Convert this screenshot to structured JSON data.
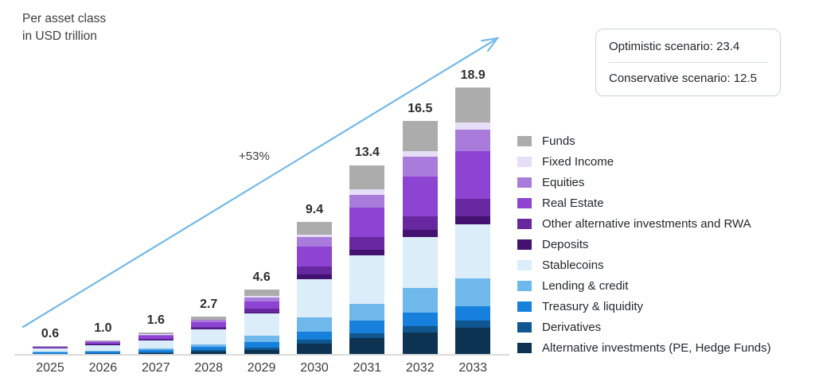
{
  "header": {
    "title_line1": "Per asset class",
    "title_line2": "in USD trillion"
  },
  "scenario_box": {
    "optimistic_label": "Optimistic scenario: 23.4",
    "conservative_label": "Conservative scenario: 12.5"
  },
  "annotations": {
    "growth_label": "+53%"
  },
  "chart_data": {
    "type": "bar",
    "stacked": true,
    "unit": "USD trillion",
    "title": "Per asset class in USD trillion",
    "legend_position": "right",
    "arrow_color": "#74b9e7",
    "axis_line_color": "#dadada",
    "categories": [
      "2025",
      "2026",
      "2027",
      "2028",
      "2029",
      "2030",
      "2031",
      "2032",
      "2033"
    ],
    "totals": [
      "0.6",
      "1.0",
      "1.6",
      "2.7",
      "4.6",
      "9.4",
      "13.4",
      "16.5",
      "18.9"
    ],
    "growth_annotation": "+53%",
    "scenarios": {
      "optimistic": 23.4,
      "conservative": 12.5
    },
    "stacking_note": "series listed top-to-bottom as shown in legend; bars stack in reverse (last series at bottom)",
    "series": [
      {
        "name": "Funds",
        "color": "#acacac",
        "values": [
          0.02,
          0.04,
          0.14,
          0.2,
          0.45,
          0.9,
          1.7,
          2.1,
          2.5
        ]
      },
      {
        "name": "Fixed Income",
        "color": "#e5def6",
        "values": [
          0.01,
          0.02,
          0.03,
          0.05,
          0.1,
          0.2,
          0.4,
          0.4,
          0.5
        ]
      },
      {
        "name": "Equities",
        "color": "#a97cdb",
        "values": [
          0.02,
          0.05,
          0.08,
          0.12,
          0.3,
          0.65,
          0.9,
          1.4,
          1.5
        ]
      },
      {
        "name": "Real Estate",
        "color": "#8e44d3",
        "values": [
          0.05,
          0.12,
          0.2,
          0.35,
          0.5,
          1.4,
          2.1,
          2.8,
          3.4
        ]
      },
      {
        "name": "Other alternative investments and RWA",
        "color": "#67279e",
        "values": [
          0.03,
          0.05,
          0.07,
          0.12,
          0.25,
          0.6,
          0.9,
          1.0,
          1.2
        ]
      },
      {
        "name": "Deposits",
        "color": "#431270",
        "values": [
          0.02,
          0.03,
          0.04,
          0.06,
          0.1,
          0.3,
          0.4,
          0.5,
          0.6
        ]
      },
      {
        "name": "Stablecoins",
        "color": "#dcedfa",
        "values": [
          0.25,
          0.4,
          0.6,
          1.05,
          1.55,
          2.7,
          3.4,
          3.6,
          3.8
        ]
      },
      {
        "name": "Lending & credit",
        "color": "#6fb8ec",
        "values": [
          0.05,
          0.08,
          0.12,
          0.2,
          0.45,
          1.0,
          1.2,
          1.7,
          2.0
        ]
      },
      {
        "name": "Treasury & liquidity",
        "color": "#1780dc",
        "values": [
          0.07,
          0.1,
          0.15,
          0.22,
          0.4,
          0.6,
          0.9,
          1.0,
          1.0
        ]
      },
      {
        "name": "Derivatives",
        "color": "#10568f",
        "values": [
          0.03,
          0.04,
          0.05,
          0.08,
          0.15,
          0.25,
          0.3,
          0.4,
          0.5
        ]
      },
      {
        "name": "Alternative investments (PE, Hedge Funds)",
        "color": "#0c3351",
        "values": [
          0.05,
          0.07,
          0.12,
          0.25,
          0.35,
          0.8,
          1.2,
          1.6,
          1.9
        ]
      }
    ]
  }
}
